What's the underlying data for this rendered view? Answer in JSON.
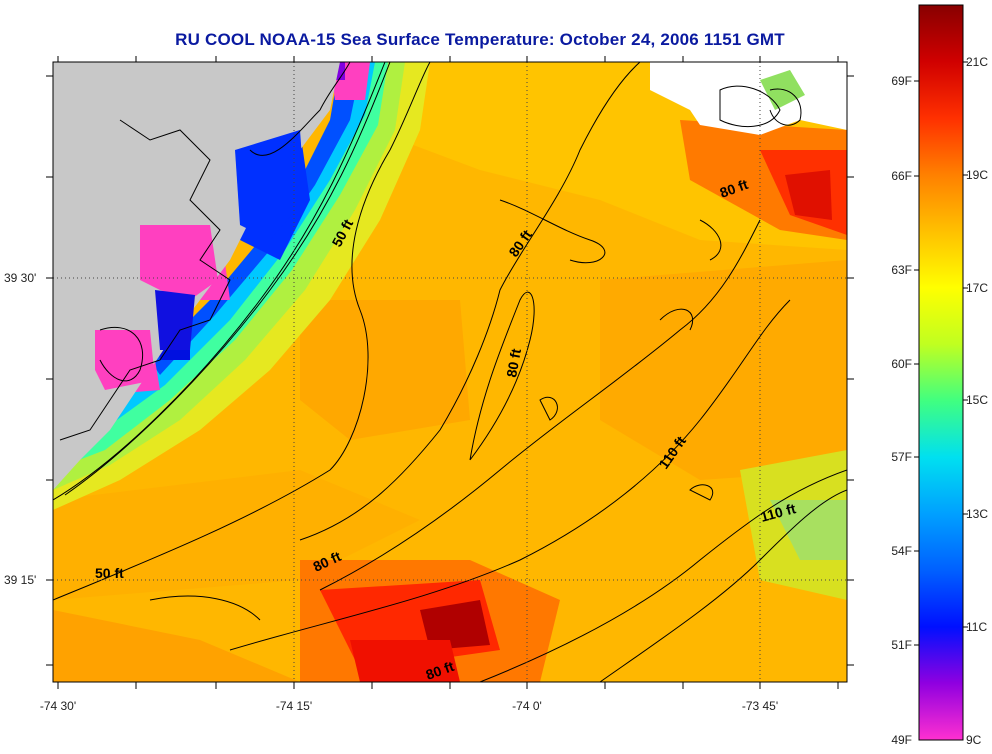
{
  "title": "RU COOL  NOAA-15  Sea Surface Temperature:  October 24, 2006 1151 GMT",
  "map": {
    "x_ticks": [
      "-74 30'",
      "-74 15'",
      "-74 0'",
      "-73 45'"
    ],
    "y_ticks": [
      "39 30'",
      "39 15'"
    ],
    "contour_labels": [
      "50 ft",
      "50 ft",
      "80 ft",
      "80 ft",
      "80 ft",
      "80 ft",
      "80 ft",
      "110 ft",
      "110 ft"
    ],
    "colors": {
      "land": "#c8c8c8",
      "ocean_base": "#ffb400",
      "coast_line": "#000000"
    }
  },
  "colorbar": {
    "f_labels": [
      "69F",
      "66F",
      "63F",
      "60F",
      "57F",
      "54F",
      "51F",
      "49F"
    ],
    "c_labels": [
      "21C",
      "19C",
      "17C",
      "15C",
      "13C",
      "11C",
      "9C"
    ],
    "gradient": [
      "#ff30d0",
      "#9000e0",
      "#0010ff",
      "#0060ff",
      "#00a0ff",
      "#00e0f0",
      "#40ff80",
      "#c0ff20",
      "#ffff00",
      "#ffc000",
      "#ff8000",
      "#ff3000",
      "#d00000",
      "#880000"
    ]
  }
}
